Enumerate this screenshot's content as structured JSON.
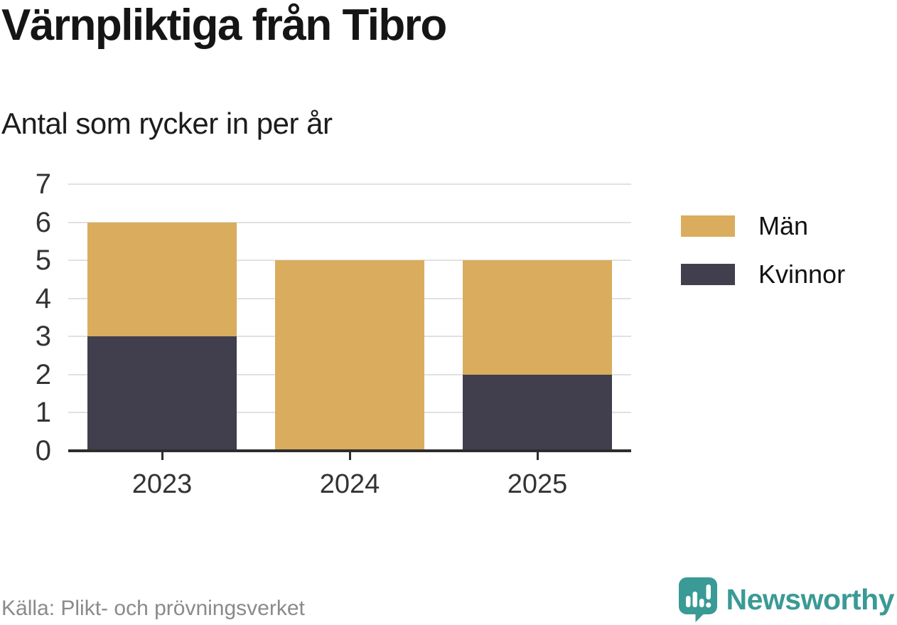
{
  "header": {
    "title": "Värnpliktiga från Tibro",
    "subtitle": "Antal som rycker in per år"
  },
  "chart_data": {
    "type": "bar",
    "stacked": true,
    "title": "Värnpliktiga från Tibro",
    "subtitle": "Antal som rycker in per år",
    "categories": [
      "2023",
      "2024",
      "2025"
    ],
    "series": [
      {
        "name": "Män",
        "color": "#d9ac5e",
        "values": [
          3,
          5,
          3
        ]
      },
      {
        "name": "Kvinnor",
        "color": "#413f4e",
        "values": [
          3,
          0,
          2
        ]
      }
    ],
    "stack_bottom_to_top": [
      "Kvinnor",
      "Män"
    ],
    "totals": [
      6,
      5,
      5
    ],
    "xlabel": "",
    "ylabel": "",
    "ylim": [
      0,
      7
    ],
    "yticks": [
      0,
      1,
      2,
      3,
      4,
      5,
      6,
      7
    ],
    "grid": "horizontal-only",
    "legend_position": "right"
  },
  "legend": {
    "items": [
      {
        "label": "Män",
        "color": "#d9ac5e"
      },
      {
        "label": "Kvinnor",
        "color": "#413f4e"
      }
    ]
  },
  "footer": {
    "source": "Källa: Plikt- och prövningsverket",
    "brand": "Newsworthy"
  },
  "colors": {
    "bar_men": "#d9ac5e",
    "bar_women": "#413f4e",
    "brand_teal": "#3a9a95",
    "gridline": "#e1e1e1",
    "axis": "#2d2d2d",
    "tick_label": "#333333",
    "source_text": "#8a8a8a"
  }
}
